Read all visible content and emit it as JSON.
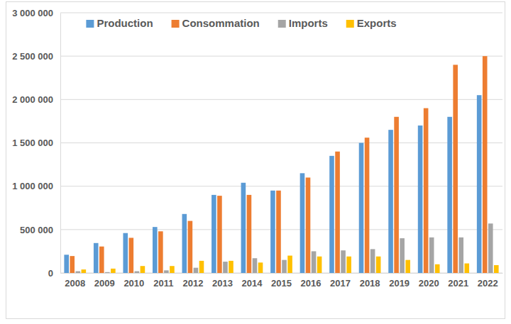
{
  "chart_data": {
    "type": "bar",
    "categories": [
      "2008",
      "2009",
      "2010",
      "2011",
      "2012",
      "2013",
      "2014",
      "2015",
      "2016",
      "2017",
      "2018",
      "2019",
      "2020",
      "2021",
      "2022"
    ],
    "series": [
      {
        "name": "Production",
        "color": "#5B9BD5",
        "values": [
          210000,
          345000,
          460000,
          530000,
          680000,
          900000,
          1040000,
          950000,
          1150000,
          1350000,
          1500000,
          1650000,
          1700000,
          1800000,
          2050000
        ]
      },
      {
        "name": "Consommation",
        "color": "#ED7D31",
        "values": [
          195000,
          305000,
          405000,
          480000,
          600000,
          890000,
          900000,
          950000,
          1100000,
          1400000,
          1560000,
          1800000,
          1900000,
          2400000,
          2500000
        ]
      },
      {
        "name": "Imports",
        "color": "#A5A5A5",
        "values": [
          20000,
          10000,
          20000,
          30000,
          60000,
          130000,
          170000,
          150000,
          250000,
          260000,
          275000,
          400000,
          410000,
          410000,
          570000
        ]
      },
      {
        "name": "Exports",
        "color": "#FFC000",
        "values": [
          40000,
          50000,
          80000,
          80000,
          140000,
          140000,
          120000,
          200000,
          190000,
          190000,
          190000,
          150000,
          100000,
          110000,
          90000
        ]
      }
    ],
    "ylim": [
      0,
      3000000
    ],
    "yticks": [
      0,
      {
        "value": 500000,
        "label": "500 000"
      },
      {
        "value": 1000000,
        "label": "1 000 000"
      },
      {
        "value": 1500000,
        "label": "1 500 000"
      },
      {
        "value": 2000000,
        "label": "2 000 000"
      },
      {
        "value": 2500000,
        "label": "2 500 000"
      },
      {
        "value": 3000000,
        "label": "3 000 000"
      }
    ],
    "grid": true,
    "legend": "top"
  }
}
